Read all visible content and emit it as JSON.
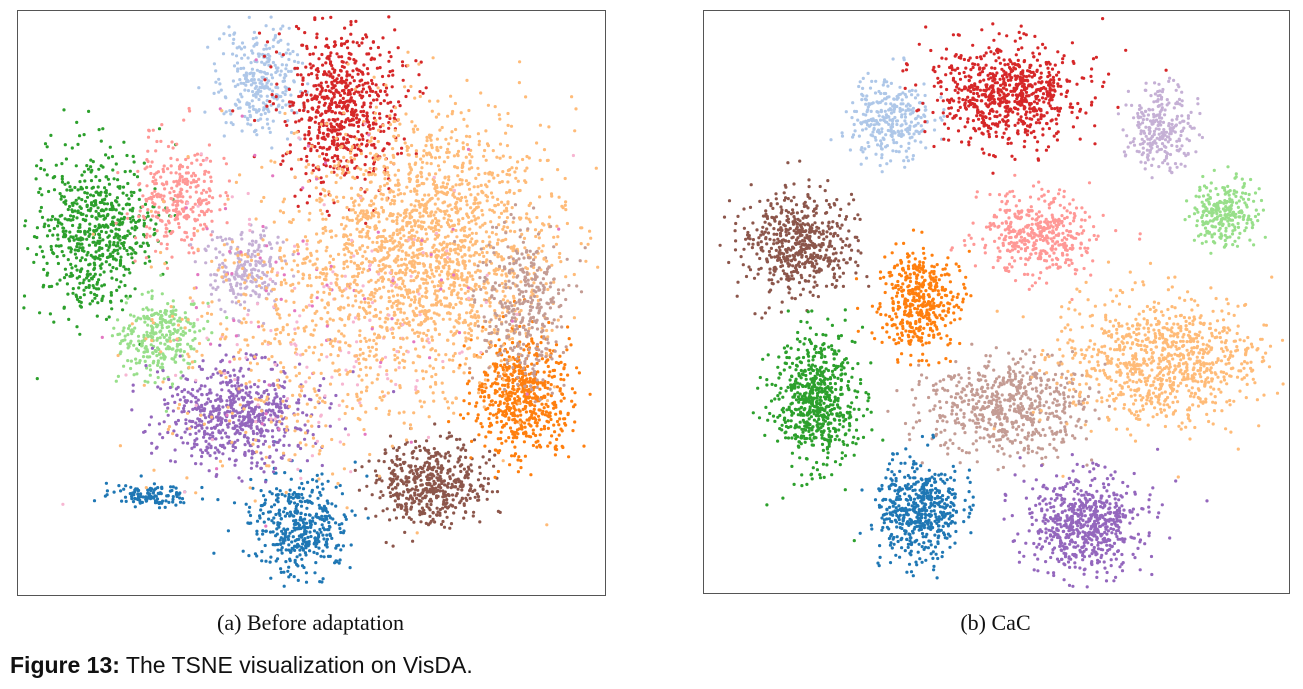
{
  "chart_data": [
    {
      "type": "scatter",
      "subtitle": "(a) Before adaptation",
      "clusters": [
        {
          "color": "#1f77b4",
          "center": [
            0.48,
            0.88
          ],
          "spread": [
            0.06,
            0.06
          ],
          "count": 420
        },
        {
          "color": "#1f77b4",
          "center": [
            0.23,
            0.83
          ],
          "spread": [
            0.05,
            0.012
          ],
          "count": 120
        },
        {
          "color": "#aec7e8",
          "center": [
            0.41,
            0.12
          ],
          "spread": [
            0.05,
            0.07
          ],
          "count": 300
        },
        {
          "color": "#d62728",
          "center": [
            0.55,
            0.16
          ],
          "spread": [
            0.07,
            0.1
          ],
          "count": 700
        },
        {
          "color": "#2ca02c",
          "center": [
            0.13,
            0.38
          ],
          "spread": [
            0.07,
            0.1
          ],
          "count": 650
        },
        {
          "color": "#98df8a",
          "center": [
            0.24,
            0.56
          ],
          "spread": [
            0.05,
            0.05
          ],
          "count": 300
        },
        {
          "color": "#ff9896",
          "center": [
            0.27,
            0.32
          ],
          "spread": [
            0.05,
            0.07
          ],
          "count": 300
        },
        {
          "color": "#c5b0d5",
          "center": [
            0.39,
            0.44
          ],
          "spread": [
            0.05,
            0.05
          ],
          "count": 220
        },
        {
          "color": "#9467bd",
          "center": [
            0.37,
            0.69
          ],
          "spread": [
            0.09,
            0.06
          ],
          "count": 650
        },
        {
          "color": "#8c564b",
          "center": [
            0.7,
            0.81
          ],
          "spread": [
            0.07,
            0.05
          ],
          "count": 500
        },
        {
          "color": "#ff7f0e",
          "center": [
            0.86,
            0.66
          ],
          "spread": [
            0.06,
            0.07
          ],
          "count": 600
        },
        {
          "color": "#ffbb78",
          "center": [
            0.7,
            0.4
          ],
          "spread": [
            0.15,
            0.16
          ],
          "count": 1800
        },
        {
          "color": "#c49c94",
          "center": [
            0.86,
            0.5
          ],
          "spread": [
            0.05,
            0.1
          ],
          "count": 350
        },
        {
          "color": "#f7b6d2",
          "center": [
            0.55,
            0.55
          ],
          "spread": [
            0.2,
            0.2
          ],
          "count": 150
        },
        {
          "color": "#e377c2",
          "center": [
            0.5,
            0.5
          ],
          "spread": [
            0.22,
            0.22
          ],
          "count": 80
        },
        {
          "color": "#ffbb78",
          "center": [
            0.48,
            0.55
          ],
          "spread": [
            0.18,
            0.18
          ],
          "count": 500
        }
      ]
    },
    {
      "type": "scatter",
      "subtitle": "(b) CaC",
      "clusters": [
        {
          "color": "#aec7e8",
          "center": [
            0.32,
            0.19
          ],
          "spread": [
            0.05,
            0.05
          ],
          "count": 300
        },
        {
          "color": "#d62728",
          "center": [
            0.52,
            0.14
          ],
          "spread": [
            0.09,
            0.06
          ],
          "count": 750
        },
        {
          "color": "#c5b0d5",
          "center": [
            0.78,
            0.2
          ],
          "spread": [
            0.04,
            0.05
          ],
          "count": 260
        },
        {
          "color": "#98df8a",
          "center": [
            0.89,
            0.35
          ],
          "spread": [
            0.04,
            0.04
          ],
          "count": 260
        },
        {
          "color": "#8c564b",
          "center": [
            0.16,
            0.4
          ],
          "spread": [
            0.07,
            0.06
          ],
          "count": 550
        },
        {
          "color": "#ff9896",
          "center": [
            0.57,
            0.38
          ],
          "spread": [
            0.07,
            0.05
          ],
          "count": 420
        },
        {
          "color": "#ff7f0e",
          "center": [
            0.37,
            0.5
          ],
          "spread": [
            0.05,
            0.06
          ],
          "count": 450
        },
        {
          "color": "#2ca02c",
          "center": [
            0.19,
            0.67
          ],
          "spread": [
            0.05,
            0.08
          ],
          "count": 650
        },
        {
          "color": "#c49c94",
          "center": [
            0.52,
            0.68
          ],
          "spread": [
            0.1,
            0.06
          ],
          "count": 600
        },
        {
          "color": "#ffbb78",
          "center": [
            0.78,
            0.6
          ],
          "spread": [
            0.12,
            0.08
          ],
          "count": 900
        },
        {
          "color": "#1f77b4",
          "center": [
            0.37,
            0.86
          ],
          "spread": [
            0.05,
            0.06
          ],
          "count": 520
        },
        {
          "color": "#9467bd",
          "center": [
            0.65,
            0.88
          ],
          "spread": [
            0.07,
            0.06
          ],
          "count": 650
        }
      ]
    }
  ],
  "figure": {
    "label": "Figure 13:",
    "text": " The TSNE visualization on VisDA."
  }
}
